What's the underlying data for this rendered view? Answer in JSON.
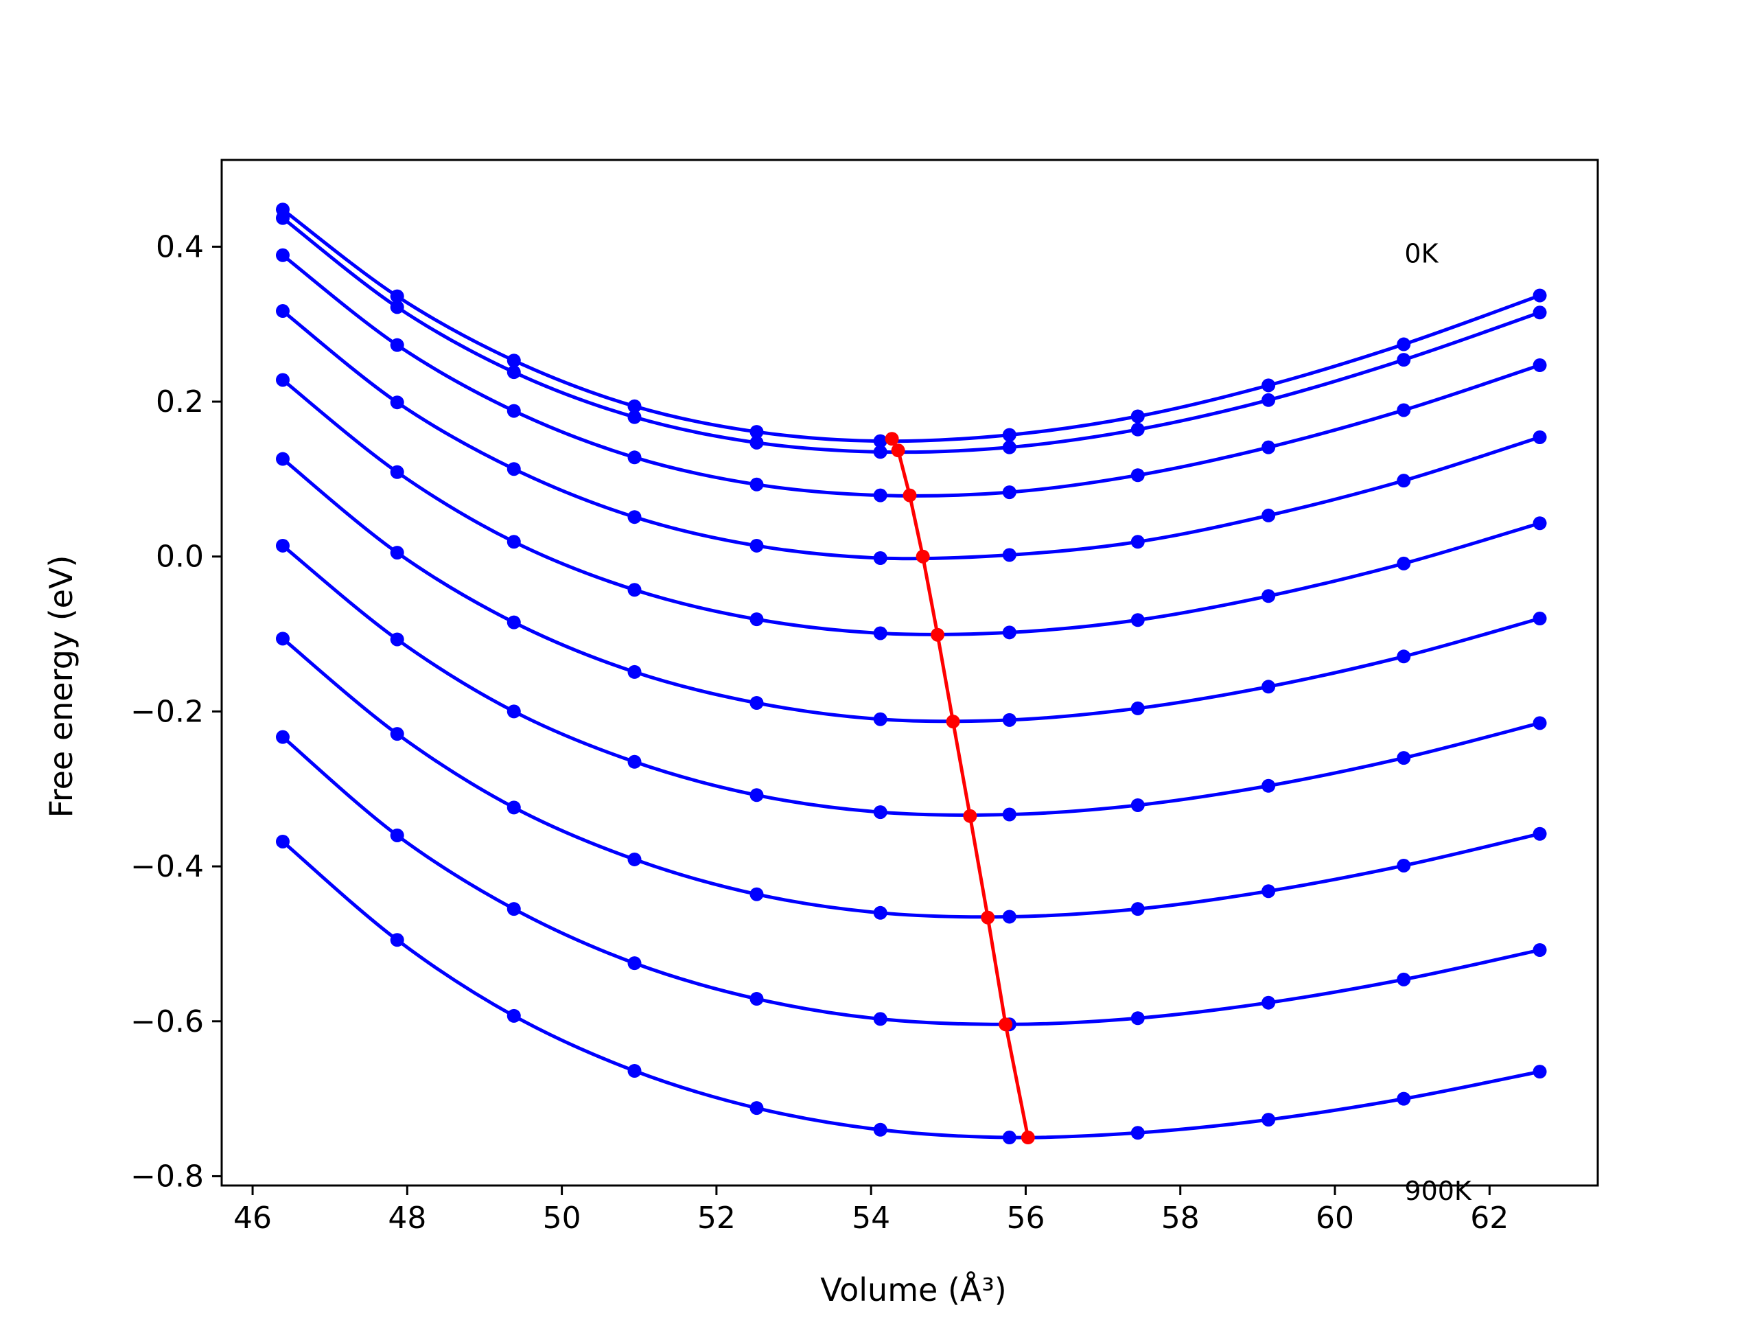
{
  "chart_data": {
    "type": "line",
    "xlabel": "Volume (Å³)",
    "ylabel": "Free energy (eV)",
    "xlim": [
      45.6,
      63.4
    ],
    "ylim": [
      -0.812,
      0.512
    ],
    "xticks": [
      46,
      48,
      50,
      52,
      54,
      56,
      58,
      60,
      62
    ],
    "yticks": [
      -0.8,
      -0.6,
      -0.4,
      -0.2,
      0.0,
      0.2,
      0.4
    ],
    "ytick_labels": [
      "−0.8",
      "−0.6",
      "−0.4",
      "−0.2",
      "0.0",
      "0.2",
      "0.4"
    ],
    "grid": false,
    "annotations": [
      {
        "text": "0K",
        "x": 60.9,
        "y": 0.39
      },
      {
        "text": "900K",
        "x": 60.9,
        "y": -0.82
      }
    ],
    "x": [
      46.39,
      47.87,
      49.38,
      50.94,
      52.52,
      54.12,
      55.79,
      57.45,
      59.14,
      60.89,
      62.65
    ],
    "series": [
      {
        "values": [
          0.448,
          0.336,
          0.253,
          0.194,
          0.161,
          0.149,
          0.157,
          0.181,
          0.221,
          0.274,
          0.337
        ],
        "color": "#0000ff"
      },
      {
        "values": [
          0.437,
          0.322,
          0.238,
          0.18,
          0.147,
          0.135,
          0.141,
          0.164,
          0.202,
          0.254,
          0.315
        ],
        "color": "#0000ff"
      },
      {
        "values": [
          0.389,
          0.273,
          0.188,
          0.128,
          0.093,
          0.079,
          0.083,
          0.105,
          0.141,
          0.189,
          0.247
        ],
        "color": "#0000ff"
      },
      {
        "values": [
          0.317,
          0.199,
          0.113,
          0.051,
          0.014,
          -0.002,
          0.002,
          0.019,
          0.053,
          0.098,
          0.154
        ],
        "color": "#0000ff"
      },
      {
        "values": [
          0.228,
          0.109,
          0.019,
          -0.043,
          -0.081,
          -0.099,
          -0.098,
          -0.082,
          -0.051,
          -0.009,
          0.043
        ],
        "color": "#0000ff"
      },
      {
        "values": [
          0.126,
          0.005,
          -0.085,
          -0.149,
          -0.189,
          -0.21,
          -0.211,
          -0.196,
          -0.168,
          -0.129,
          -0.08
        ],
        "color": "#0000ff"
      },
      {
        "values": [
          0.014,
          -0.107,
          -0.2,
          -0.265,
          -0.308,
          -0.33,
          -0.333,
          -0.321,
          -0.296,
          -0.26,
          -0.215
        ],
        "color": "#0000ff"
      },
      {
        "values": [
          -0.106,
          -0.229,
          -0.324,
          -0.391,
          -0.436,
          -0.46,
          -0.465,
          -0.455,
          -0.432,
          -0.399,
          -0.358
        ],
        "color": "#0000ff"
      },
      {
        "values": [
          -0.233,
          -0.36,
          -0.455,
          -0.525,
          -0.571,
          -0.597,
          -0.604,
          -0.596,
          -0.576,
          -0.546,
          -0.508
        ],
        "color": "#0000ff"
      },
      {
        "values": [
          -0.368,
          -0.495,
          -0.593,
          -0.664,
          -0.712,
          -0.74,
          -0.75,
          -0.744,
          -0.727,
          -0.7,
          -0.665
        ],
        "color": "#0000ff"
      }
    ],
    "minima": {
      "x": [
        54.27,
        54.35,
        54.5,
        54.67,
        54.86,
        55.06,
        55.28,
        55.51,
        55.74,
        56.03
      ],
      "y": [
        0.152,
        0.137,
        0.079,
        0.0,
        -0.101,
        -0.213,
        -0.335,
        -0.466,
        -0.604,
        -0.75
      ],
      "color": "#ff0000"
    }
  }
}
